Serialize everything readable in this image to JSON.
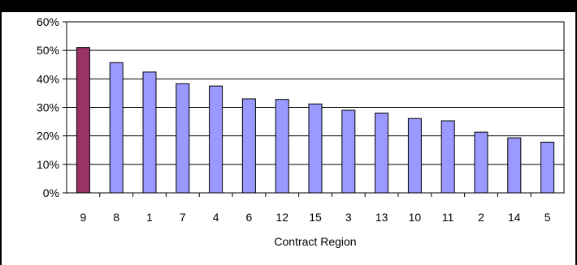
{
  "chart_data": {
    "type": "bar",
    "xlabel": "Contract Region",
    "ylabel": "",
    "ylim": [
      0,
      0.6
    ],
    "yticks": [
      "0%",
      "10%",
      "20%",
      "30%",
      "40%",
      "50%",
      "60%"
    ],
    "ytick_values": [
      0,
      0.1,
      0.2,
      0.3,
      0.4,
      0.5,
      0.6
    ],
    "categories": [
      "9",
      "8",
      "1",
      "7",
      "4",
      "6",
      "12",
      "15",
      "3",
      "13",
      "10",
      "11",
      "2",
      "14",
      "5"
    ],
    "values": [
      0.51,
      0.457,
      0.424,
      0.383,
      0.375,
      0.33,
      0.328,
      0.312,
      0.29,
      0.28,
      0.261,
      0.253,
      0.213,
      0.193,
      0.178
    ],
    "grid": true,
    "colors": {
      "highlight": "#993366",
      "bar": "#9999ff",
      "highlighted_category": "9"
    }
  }
}
